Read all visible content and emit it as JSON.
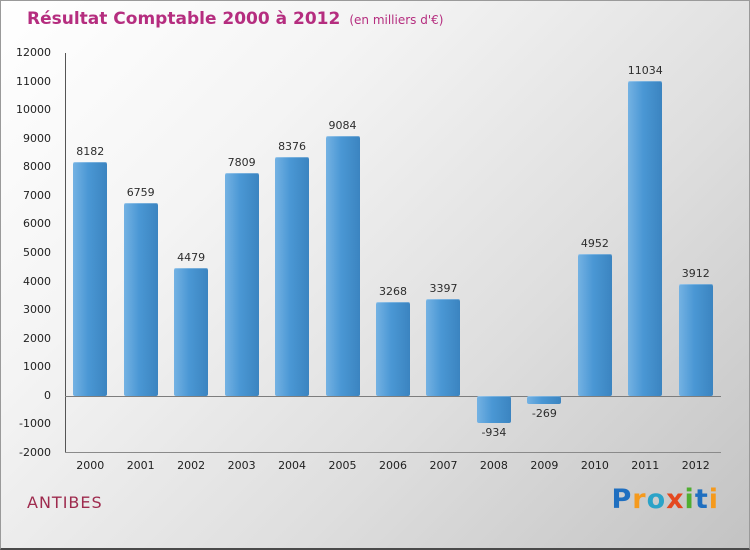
{
  "header": {
    "title": "Résultat Comptable 2000 à 2012",
    "subtitle": "(en milliers d'€)"
  },
  "footer": {
    "org": "ANTIBES",
    "logo": {
      "letters": [
        {
          "ch": "P",
          "color": "#1f6fc0"
        },
        {
          "ch": "r",
          "color": "#f59a1d"
        },
        {
          "ch": "o",
          "color": "#2ba3c8"
        },
        {
          "ch": "x",
          "color": "#e4481f"
        },
        {
          "ch": "i",
          "color": "#4fae30"
        },
        {
          "ch": "t",
          "color": "#1f6fc0"
        },
        {
          "ch": "i",
          "color": "#f59a1d"
        }
      ]
    }
  },
  "chart_data": {
    "type": "bar",
    "title": "Résultat Comptable 2000 à 2012",
    "subtitle": "(en milliers d'€)",
    "categories": [
      "2000",
      "2001",
      "2002",
      "2003",
      "2004",
      "2005",
      "2006",
      "2007",
      "2008",
      "2009",
      "2010",
      "2011",
      "2012"
    ],
    "values": [
      8182,
      6759,
      4479,
      7809,
      8376,
      9084,
      3268,
      3397,
      -934,
      -269,
      4952,
      11034,
      3912
    ],
    "ylim": [
      -2000,
      12000
    ],
    "ytick_step": 1000,
    "grid": false,
    "legend": "none",
    "bar_color": "#4190cf"
  }
}
